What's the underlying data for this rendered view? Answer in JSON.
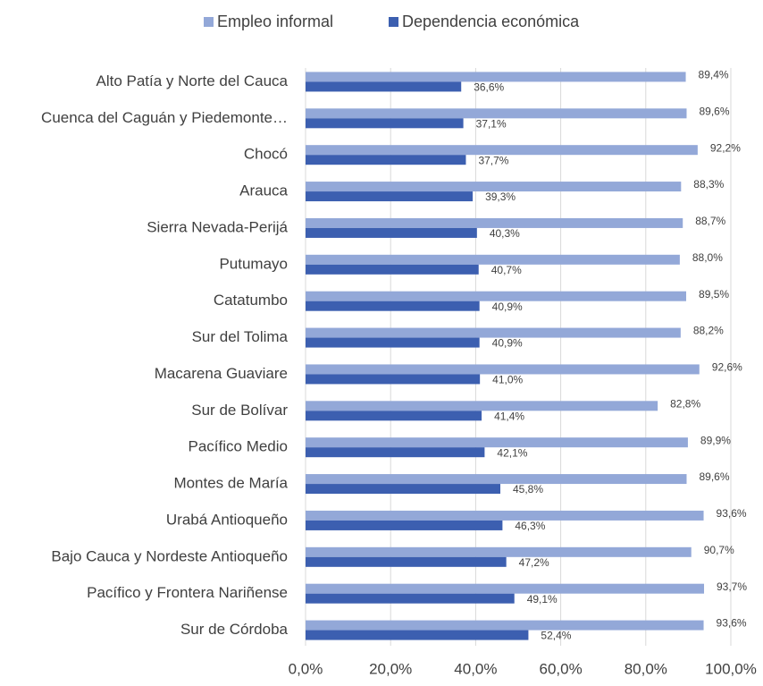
{
  "chart_data": {
    "type": "bar",
    "orientation": "horizontal",
    "categories": [
      "Alto Patía y Norte del Cauca",
      "Cuenca del Caguán y Piedemonte…",
      "Chocó",
      "Arauca",
      "Sierra Nevada-Perijá",
      "Putumayo",
      "Catatumbo",
      "Sur del Tolima",
      "Macarena Guaviare",
      "Sur de Bolívar",
      "Pacífico Medio",
      "Montes de María",
      "Urabá Antioqueño",
      "Bajo Cauca y Nordeste Antioqueño",
      "Pacífico y Frontera Nariñense",
      "Sur de Córdoba"
    ],
    "series": [
      {
        "name": "Empleo informal",
        "color": "#93a8d8",
        "values": [
          89.4,
          89.6,
          92.2,
          88.3,
          88.7,
          88.0,
          89.5,
          88.2,
          92.6,
          82.8,
          89.9,
          89.6,
          93.6,
          90.7,
          93.7,
          93.6
        ],
        "value_labels": [
          "89,4%",
          "89,6%",
          "92,2%",
          "88,3%",
          "88,7%",
          "88,0%",
          "89,5%",
          "88,2%",
          "92,6%",
          "82,8%",
          "89,9%",
          "89,6%",
          "93,6%",
          "90,7%",
          "93,7%",
          "93,6%"
        ]
      },
      {
        "name": "Dependencia económica",
        "color": "#3c5fb0",
        "values": [
          36.6,
          37.1,
          37.7,
          39.3,
          40.3,
          40.7,
          40.9,
          40.9,
          41.0,
          41.4,
          42.1,
          45.8,
          46.3,
          47.2,
          49.1,
          52.4
        ],
        "value_labels": [
          "36,6%",
          "37,1%",
          "37,7%",
          "39,3%",
          "40,3%",
          "40,7%",
          "40,9%",
          "40,9%",
          "41,0%",
          "41,4%",
          "42,1%",
          "45,8%",
          "46,3%",
          "47,2%",
          "49,1%",
          "52,4%"
        ]
      }
    ],
    "xlim": [
      0,
      100
    ],
    "xticks": [
      {
        "value": 0,
        "label": "0,0%"
      },
      {
        "value": 20,
        "label": "20,0%"
      },
      {
        "value": 40,
        "label": "40,0%"
      },
      {
        "value": 60,
        "label": "60,0%"
      },
      {
        "value": 80,
        "label": "80,0%"
      },
      {
        "value": 100,
        "label": "100,0%"
      }
    ],
    "grid": true,
    "legend": "top"
  }
}
